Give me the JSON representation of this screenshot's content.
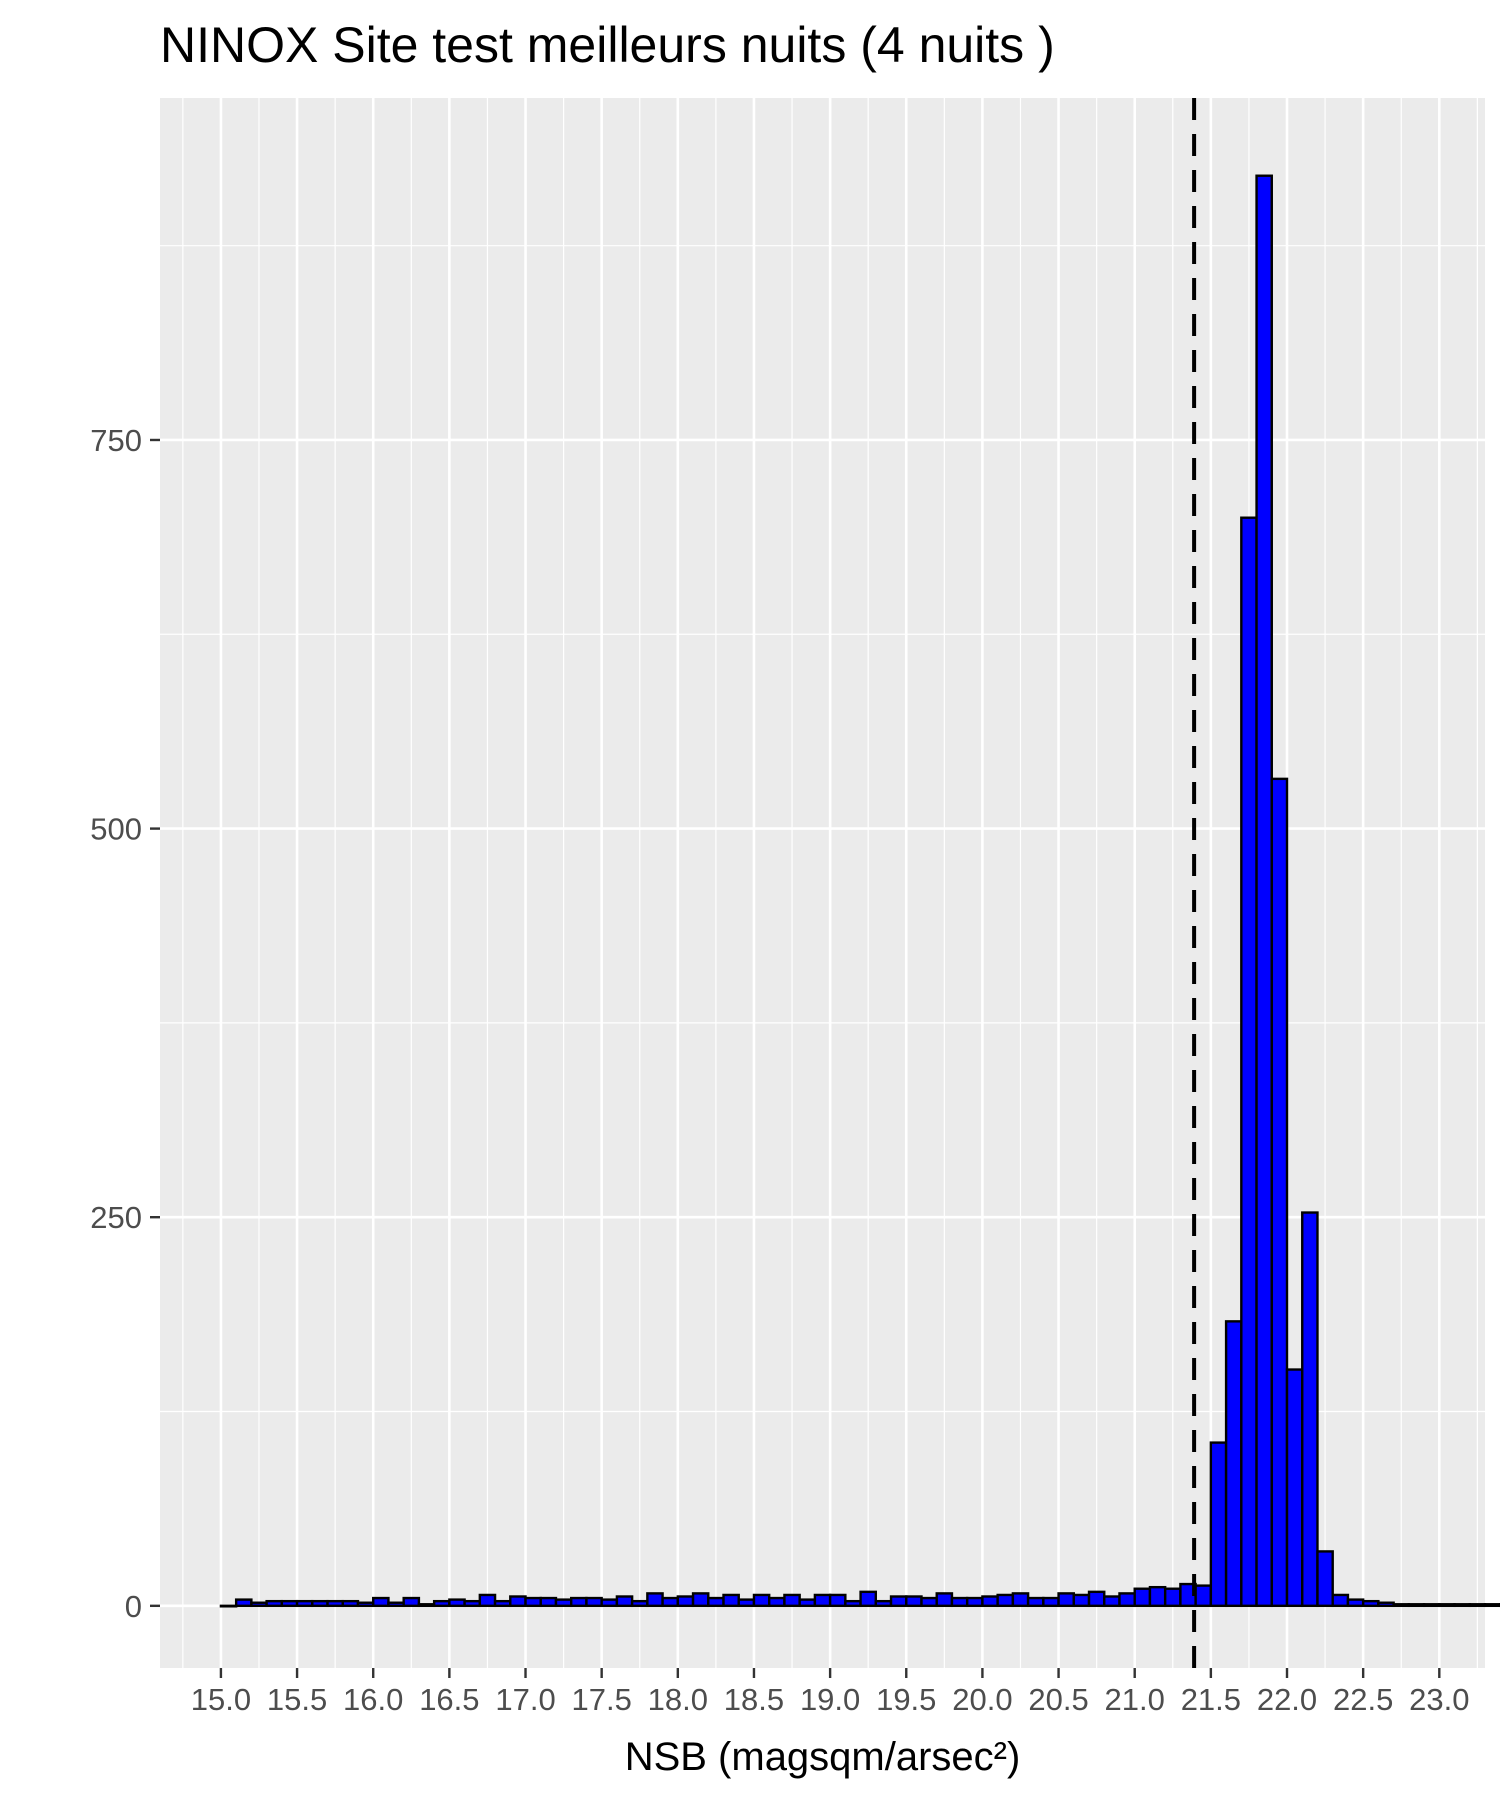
{
  "chart_data": {
    "type": "bar",
    "title": "NINOX Site test meilleurs nuits (4 nuits )",
    "xlabel": "NSB (magsqm/arsec²)",
    "ylabel": "",
    "xlim": [
      14.6,
      23.3
    ],
    "ylim": [
      -40,
      970
    ],
    "x_ticks": [
      15.0,
      15.5,
      16.0,
      16.5,
      17.0,
      17.5,
      18.0,
      18.5,
      19.0,
      19.5,
      20.0,
      20.5,
      21.0,
      21.5,
      22.0,
      22.5,
      23.0
    ],
    "x_tick_labels": [
      "15.0",
      "15.5",
      "16.0",
      "16.5",
      "17.0",
      "17.5",
      "18.0",
      "18.5",
      "19.0",
      "19.5",
      "20.0",
      "20.5",
      "21.0",
      "21.5",
      "22.0",
      "22.5",
      "23.0"
    ],
    "y_ticks": [
      0,
      250,
      500,
      750
    ],
    "y_tick_labels": [
      "0",
      "250",
      "500",
      "750"
    ],
    "bin_start": 15.0,
    "bin_width": 0.1,
    "values": [
      0,
      4,
      2,
      3,
      3,
      3,
      3,
      3,
      3,
      2,
      5,
      2,
      5,
      1,
      3,
      4,
      3,
      7,
      3,
      6,
      5,
      5,
      4,
      5,
      5,
      4,
      6,
      3,
      8,
      5,
      6,
      8,
      5,
      7,
      4,
      7,
      5,
      7,
      4,
      7,
      7,
      3,
      9,
      3,
      6,
      6,
      5,
      8,
      5,
      5,
      6,
      7,
      8,
      5,
      5,
      8,
      7,
      9,
      6,
      8,
      11,
      12,
      11,
      14,
      13,
      105,
      183,
      700,
      920,
      532,
      152,
      253,
      35,
      7,
      4,
      3,
      2,
      1,
      1,
      1,
      1,
      1,
      1,
      1,
      1,
      1,
      1,
      1,
      1,
      1
    ],
    "bar_fill": "#0000ff",
    "bar_outline": "#000000",
    "vline": {
      "x": 21.39,
      "style": "dashed",
      "color": "#000000"
    },
    "panel_background": "#ebebeb",
    "grid": true,
    "legend": "none"
  }
}
